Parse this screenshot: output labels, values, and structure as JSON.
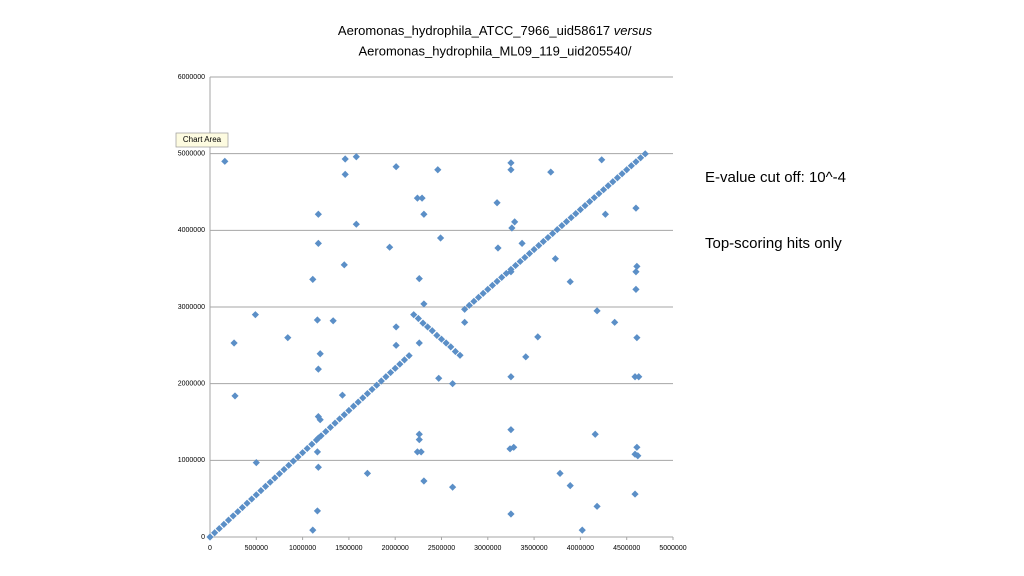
{
  "chart_data": {
    "type": "scatter",
    "title": [
      "Aeromonas_hydrophila_ATCC_7966_uid58617",
      "versus",
      "Aeromonas_hydrophila_ML09_119_uid205540/"
    ],
    "color": "#5b8fc7",
    "grid": true,
    "xlim": [
      0,
      5000000
    ],
    "ylim": [
      0,
      6000000
    ],
    "xticks": [
      0,
      500000,
      1000000,
      1500000,
      2000000,
      2500000,
      3000000,
      3500000,
      4000000,
      4500000,
      5000000
    ],
    "yticks": [
      0,
      1000000,
      2000000,
      3000000,
      4000000,
      5000000,
      6000000
    ],
    "x": [
      0,
      50000,
      100000,
      150000,
      200000,
      250000,
      300000,
      350000,
      400000,
      450000,
      500000,
      550000,
      600000,
      650000,
      700000,
      750000,
      800000,
      850000,
      900000,
      950000,
      1000000,
      1050000,
      1100000,
      1150000,
      1200000,
      1250000,
      1300000,
      1350000,
      1400000,
      1450000,
      1500000,
      1550000,
      1600000,
      1650000,
      1700000,
      1750000,
      1800000,
      1850000,
      1900000,
      1950000,
      2000000,
      2050000,
      2100000,
      2150000,
      2200000,
      2250000,
      2300000,
      2350000,
      2400000,
      2450000,
      2500000,
      2550000,
      2600000,
      2650000,
      2700000,
      2750000,
      2800000,
      2850000,
      2900000,
      2950000,
      3000000,
      3050000,
      3100000,
      3150000,
      3200000,
      3250000,
      3300000,
      3350000,
      3400000,
      3450000,
      3500000,
      3550000,
      3600000,
      3650000,
      3700000,
      3750000,
      3800000,
      3850000,
      3900000,
      3950000,
      4000000,
      4050000,
      4100000,
      4150000,
      4200000,
      4250000,
      4300000,
      4350000,
      4400000,
      4450000,
      4500000,
      4550000,
      4600000,
      4650000,
      4700000,
      160000,
      260000,
      270000,
      490000,
      500000,
      840000,
      1110000,
      1170000,
      1170000,
      1160000,
      1190000,
      1170000,
      1170000,
      1190000,
      1170000,
      1160000,
      1170000,
      1160000,
      1110000,
      1330000,
      1460000,
      1460000,
      1450000,
      1430000,
      1580000,
      1580000,
      1700000,
      1940000,
      2010000,
      2010000,
      2010000,
      2240000,
      2290000,
      2310000,
      2260000,
      2310000,
      2260000,
      2260000,
      2260000,
      2240000,
      2280000,
      2310000,
      2460000,
      2490000,
      2470000,
      2620000,
      2620000,
      2750000,
      3100000,
      3110000,
      3250000,
      3250000,
      3260000,
      3290000,
      3250000,
      3250000,
      3250000,
      3240000,
      3280000,
      3250000,
      3370000,
      3410000,
      3540000,
      3680000,
      3730000,
      3780000,
      3890000,
      3890000,
      4020000,
      4160000,
      4180000,
      4180000,
      4230000,
      4270000,
      4370000,
      4600000,
      4610000,
      4600000,
      4600000,
      4610000,
      4590000,
      4630000,
      4610000,
      4590000,
      4620000,
      4590000
    ],
    "y": [
      0,
      55000,
      110000,
      165000,
      220000,
      275000,
      330000,
      385000,
      440000,
      495000,
      550000,
      605000,
      660000,
      715000,
      770000,
      825000,
      880000,
      935000,
      990000,
      1045000,
      1100000,
      1155000,
      1210000,
      1265000,
      1320000,
      1375000,
      1430000,
      1485000,
      1540000,
      1595000,
      1650000,
      1705000,
      1760000,
      1815000,
      1870000,
      1925000,
      1980000,
      2035000,
      2090000,
      2145000,
      2200000,
      2255000,
      2310000,
      2365000,
      2900000,
      2850000,
      2790000,
      2740000,
      2690000,
      2630000,
      2580000,
      2530000,
      2480000,
      2420000,
      2370000,
      2970000,
      3022000,
      3074000,
      3126000,
      3178000,
      3230000,
      3282000,
      3334000,
      3386000,
      3438000,
      3490000,
      3542000,
      3594000,
      3646000,
      3698000,
      3750000,
      3802000,
      3854000,
      3906000,
      3958000,
      4010000,
      4062000,
      4114000,
      4166000,
      4218000,
      4270000,
      4322000,
      4374000,
      4426000,
      4478000,
      4530000,
      4582000,
      4634000,
      4686000,
      4738000,
      4790000,
      4842000,
      4894000,
      4946000,
      4998000,
      4900000,
      2530000,
      1840000,
      2900000,
      970000,
      2600000,
      3360000,
      4210000,
      3830000,
      2830000,
      2390000,
      2190000,
      1570000,
      1530000,
      1290000,
      1110000,
      910000,
      340000,
      90000,
      2820000,
      4930000,
      4730000,
      3550000,
      1850000,
      4960000,
      4080000,
      830000,
      3780000,
      4830000,
      2740000,
      2500000,
      4420000,
      4420000,
      4210000,
      3370000,
      3040000,
      2530000,
      1340000,
      1270000,
      1110000,
      1110000,
      730000,
      4790000,
      3900000,
      2070000,
      2000000,
      650000,
      2800000,
      4360000,
      3770000,
      4880000,
      4790000,
      4030000,
      4110000,
      3460000,
      2090000,
      1400000,
      1150000,
      1170000,
      300000,
      3830000,
      2350000,
      2610000,
      4760000,
      3630000,
      830000,
      3330000,
      670000,
      90000,
      1340000,
      2950000,
      400000,
      4920000,
      4210000,
      2800000,
      4290000,
      3530000,
      3460000,
      3230000,
      2600000,
      2090000,
      2090000,
      1170000,
      1080000,
      1060000,
      560000
    ]
  },
  "tooltip": "Chart Area",
  "annotations": [
    "E-value cut off: 10^-4",
    "Top-scoring hits only"
  ]
}
